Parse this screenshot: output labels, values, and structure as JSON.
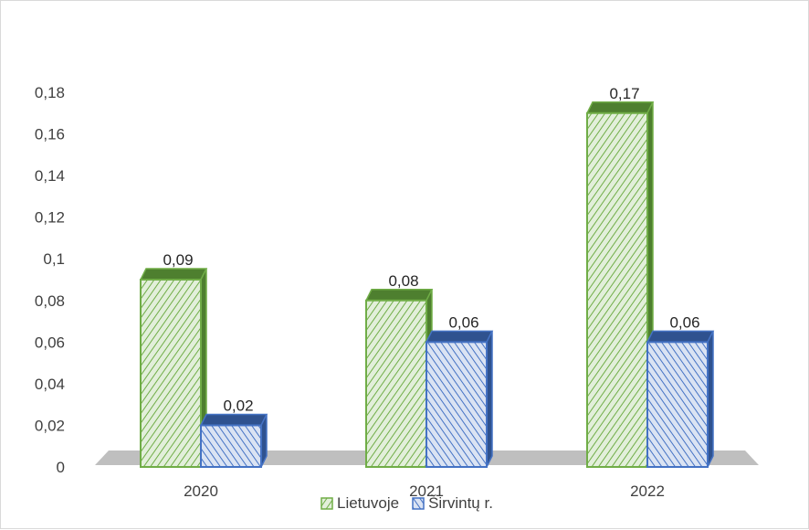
{
  "chart_data": {
    "type": "bar",
    "categories": [
      "2020",
      "2021",
      "2022"
    ],
    "series": [
      {
        "name": "Lietuvoje",
        "values": [
          0.09,
          0.08,
          0.17
        ],
        "labels": [
          "0,09",
          "0,08",
          "0,17"
        ]
      },
      {
        "name": "Širvintų r.",
        "values": [
          0.02,
          0.06,
          0.06
        ],
        "labels": [
          "0,02",
          "0,06",
          "0,06"
        ]
      }
    ],
    "ylim": [
      0,
      0.18
    ],
    "yticks": [
      0,
      0.02,
      0.04,
      0.06,
      0.08,
      0.1,
      0.12,
      0.14,
      0.16,
      0.18
    ],
    "ytick_labels": [
      "0",
      "0,02",
      "0,04",
      "0,06",
      "0,08",
      "0,1",
      "0,12",
      "0,14",
      "0,16",
      "0,18"
    ],
    "title": "",
    "xlabel": "",
    "ylabel": "",
    "legend": "bottom",
    "grid": false,
    "style": "3d-clustered-column",
    "colors": {
      "Lietuvoje": {
        "stroke": "#70ad47",
        "fill": "#c6e0b4",
        "side": "#4e7f2f"
      },
      "Širvintų r.": {
        "stroke": "#4472c4",
        "fill": "#b4c7e7",
        "side": "#2f528f"
      },
      "floor": "#bfbfbf"
    }
  }
}
